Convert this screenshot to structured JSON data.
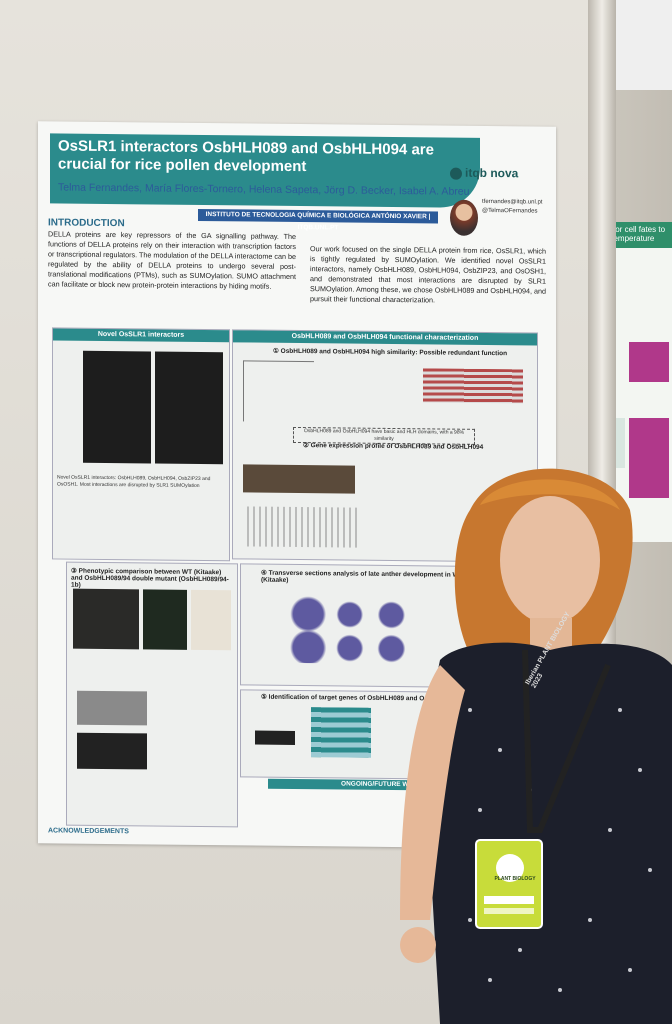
{
  "poster": {
    "title": "OsSLR1 interactors OsbHLH089 and OsbHLH094 are crucial for rice pollen development",
    "authors": "Telma Fernandes, María Flores-Tornero, Helena Sapeta, Jörg D. Becker, Isabel A. Abreu",
    "institute": "INSTITUTO DE TECNOLOGIA QUÍMICA E BIOLÓGICA ANTÓNIO XAVIER | ITQB.UNL.PT",
    "logo": "itqb nova",
    "contact_email": "tfernandes@itqb.unl.pt",
    "contact_twitter": "@TelmaOFernandes",
    "intro_heading": "INTRODUCTION",
    "intro_left": "DELLA proteins are key repressors of the GA signalling pathway. The functions of DELLA proteins rely on their interaction with transcription factors or transcriptional regulators. The modulation of the DELLA interactome can be regulated by the ability of DELLA proteins to undergo several post-translational modifications (PTMs), such as SUMOylation. SUMO attachment can facilitate or block new protein-protein interactions by hiding motifs.",
    "intro_right": "Our work focused on the single DELLA protein from rice, OsSLR1, which is tightly regulated by SUMOylation. We identified novel OsSLR1 interactors, namely OsbHLH089, OsbHLH094, OsbZIP23, and OsOSH1, and demonstrated that most interactions are disrupted by SLR1 SUMOylation. Among these, we chose OsbHLH089 and OsbHLH094, and pursuit their functional characterization.",
    "panel_novel": "Novel OsSLR1 interactors",
    "panel_functional": "OsbHLH089 and OsbHLH094 functional characterization",
    "sec1": "① OsbHLH089 and OsbHLH094 high similarity: Possible redundant function",
    "sec2": "② Gene expression profile of OsbHLH089 and OsbHLH094",
    "sec3": "③ Phenotypic comparison between WT (Kitaake) and OsbHLH089/94 double mutant (OsbHLH089/94-1b)",
    "sec4": "④ Transverse sections analysis of late anther development in WT (Kitaake)",
    "sec5": "⑤ Identification of target genes of OsbHLH089 and OsbHLH094",
    "novel_box": "Novel OsSLR1 interactors: OsbHLH089, OsbHLH094, OsbZIP23 and OsOSH1. Most interactions are disrupted by SLR1 SUMOylation",
    "similarity_box": "OsbHLH089 and OsbHLH094 have basic and HLH domains, with a 98% similarity",
    "ongoing": "ONGOING/FUTURE WORK",
    "acknowledgements": "ACKNOWLEDGEMENTS"
  },
  "right_poster": {
    "title": "recursor cell fates to redu temperature"
  },
  "badge": {
    "text": "PLANT BIOLOGY"
  },
  "lanyard": {
    "text": "Iberian PLANT BIOLOGY 2023"
  }
}
